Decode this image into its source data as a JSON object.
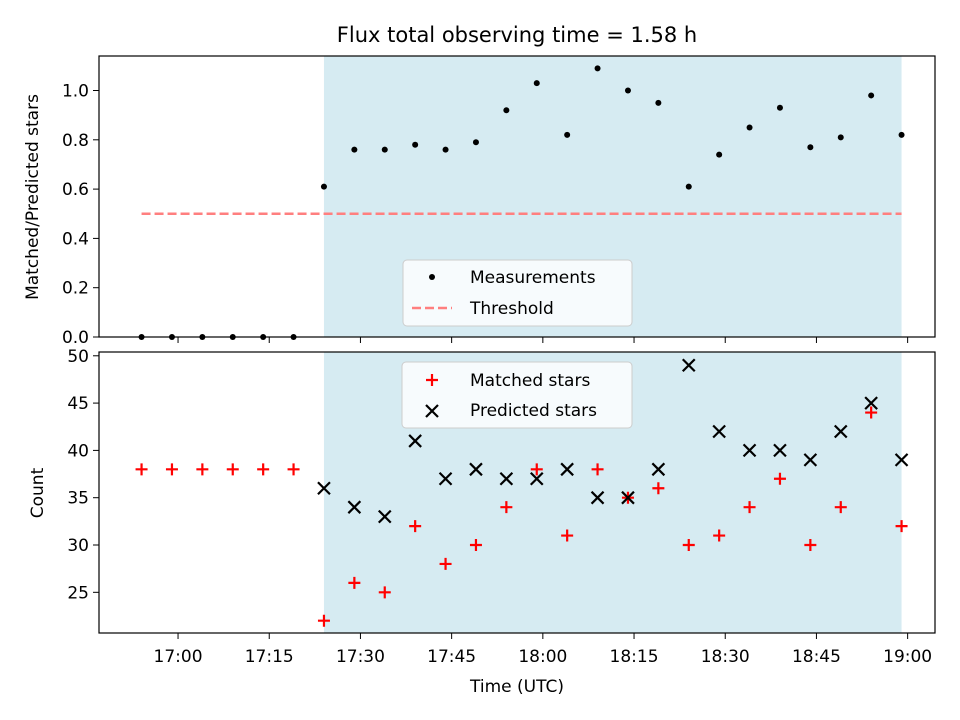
{
  "chart_data": {
    "title": "Flux total observing time = 1.58 h",
    "xlabel": "Time (UTC)",
    "x_tick_labels": [
      "17:00",
      "17:15",
      "17:30",
      "17:45",
      "18:00",
      "18:15",
      "18:30",
      "18:45",
      "19:00"
    ],
    "x_tick_minutes": [
      1020,
      1035,
      1050,
      1065,
      1080,
      1095,
      1110,
      1125,
      1140
    ],
    "x_range_minutes": [
      1007,
      1144.5
    ],
    "observing_window_minutes": [
      1044,
      1139
    ],
    "shade_color": "#add8e6",
    "panels": [
      {
        "type": "scatter",
        "ylabel": "Matched/Predicted stars",
        "ylim": [
          0,
          1.14
        ],
        "y_ticks": [
          0.0,
          0.2,
          0.4,
          0.6,
          0.8,
          1.0
        ],
        "y_tick_labels": [
          "0.0",
          "0.2",
          "0.4",
          "0.6",
          "0.8",
          "1.0"
        ],
        "legend_position": "lower-center",
        "series": [
          {
            "name": "Measurements",
            "marker": "dot",
            "color": "#000000",
            "x_minutes": [
              1014,
              1019,
              1024,
              1029,
              1034,
              1039,
              1044,
              1049,
              1054,
              1059,
              1064,
              1069,
              1074,
              1079,
              1084,
              1089,
              1094,
              1099,
              1104,
              1109,
              1114,
              1119,
              1124,
              1129,
              1134,
              1139
            ],
            "values": [
              0,
              0,
              0,
              0,
              0,
              0,
              0.61,
              0.76,
              0.76,
              0.78,
              0.76,
              0.79,
              0.92,
              1.03,
              0.82,
              1.09,
              1.0,
              0.95,
              0.61,
              0.74,
              0.85,
              0.93,
              0.77,
              0.81,
              0.98,
              0.82
            ]
          },
          {
            "name": "Threshold",
            "marker": "dashed-line",
            "color": "#ff7f7f",
            "x_minutes": [
              1014,
              1139
            ],
            "values": [
              0.5,
              0.5
            ]
          }
        ]
      },
      {
        "type": "scatter",
        "ylabel": "Count",
        "ylim": [
          20.7,
          50.4
        ],
        "y_ticks": [
          25,
          30,
          35,
          40,
          45,
          50
        ],
        "y_tick_labels": [
          "25",
          "30",
          "35",
          "40",
          "45",
          "50"
        ],
        "legend_position": "upper-center",
        "series": [
          {
            "name": "Matched stars",
            "marker": "plus",
            "color": "#ff0000",
            "x_minutes": [
              1014,
              1019,
              1024,
              1029,
              1034,
              1039,
              1044,
              1049,
              1054,
              1059,
              1064,
              1069,
              1074,
              1079,
              1084,
              1089,
              1094,
              1099,
              1104,
              1109,
              1114,
              1119,
              1124,
              1129,
              1134,
              1139
            ],
            "values": [
              38,
              38,
              38,
              38,
              38,
              38,
              22,
              26,
              25,
              32,
              28,
              30,
              34,
              38,
              31,
              38,
              35,
              36,
              30,
              31,
              34,
              37,
              30,
              34,
              44,
              32
            ]
          },
          {
            "name": "Predicted stars",
            "marker": "x",
            "color": "#000000",
            "x_minutes": [
              1044,
              1049,
              1054,
              1059,
              1064,
              1069,
              1074,
              1079,
              1084,
              1089,
              1094,
              1099,
              1104,
              1109,
              1114,
              1119,
              1124,
              1129,
              1134,
              1139
            ],
            "values": [
              36,
              34,
              33,
              41,
              37,
              38,
              37,
              37,
              38,
              35,
              35,
              38,
              49,
              42,
              40,
              40,
              39,
              42,
              45,
              39
            ]
          }
        ]
      }
    ]
  }
}
